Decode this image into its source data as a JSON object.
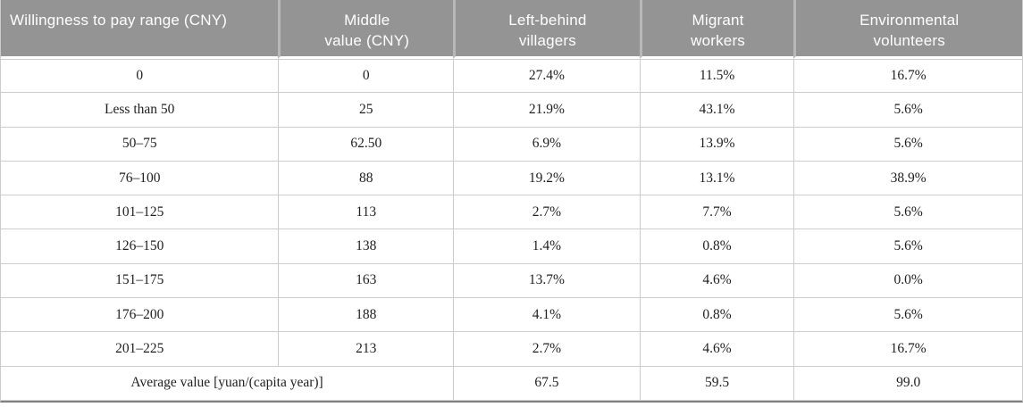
{
  "table": {
    "headers": [
      "Willingness to pay range (CNY)",
      "Middle\nvalue (CNY)",
      "Left-behind\nvillagers",
      "Migrant\nworkers",
      "Environmental\nvolunteers"
    ],
    "rows": [
      [
        "0",
        "0",
        "27.4%",
        "11.5%",
        "16.7%"
      ],
      [
        "Less than 50",
        "25",
        "21.9%",
        "43.1%",
        "5.6%"
      ],
      [
        "50–75",
        "62.50",
        "6.9%",
        "13.9%",
        "5.6%"
      ],
      [
        "76–100",
        "88",
        "19.2%",
        "13.1%",
        "38.9%"
      ],
      [
        "101–125",
        "113",
        "2.7%",
        "7.7%",
        "5.6%"
      ],
      [
        "126–150",
        "138",
        "1.4%",
        "0.8%",
        "5.6%"
      ],
      [
        "151–175",
        "163",
        "13.7%",
        "4.6%",
        "0.0%"
      ],
      [
        "176–200",
        "188",
        "4.1%",
        "0.8%",
        "5.6%"
      ],
      [
        "201–225",
        "213",
        "2.7%",
        "4.6%",
        "16.7%"
      ]
    ],
    "footer": {
      "label": "Average value [yuan/(capita year)]",
      "values": [
        "67.5",
        "59.5",
        "99.0"
      ]
    }
  },
  "colors": {
    "header_bg": "#949494",
    "header_text": "#ffffff",
    "header_separator": "#b8b8b8",
    "row_border": "#cccccc",
    "bottom_border": "#808080",
    "body_text": "#1f1f1f",
    "background": "#ffffff"
  }
}
